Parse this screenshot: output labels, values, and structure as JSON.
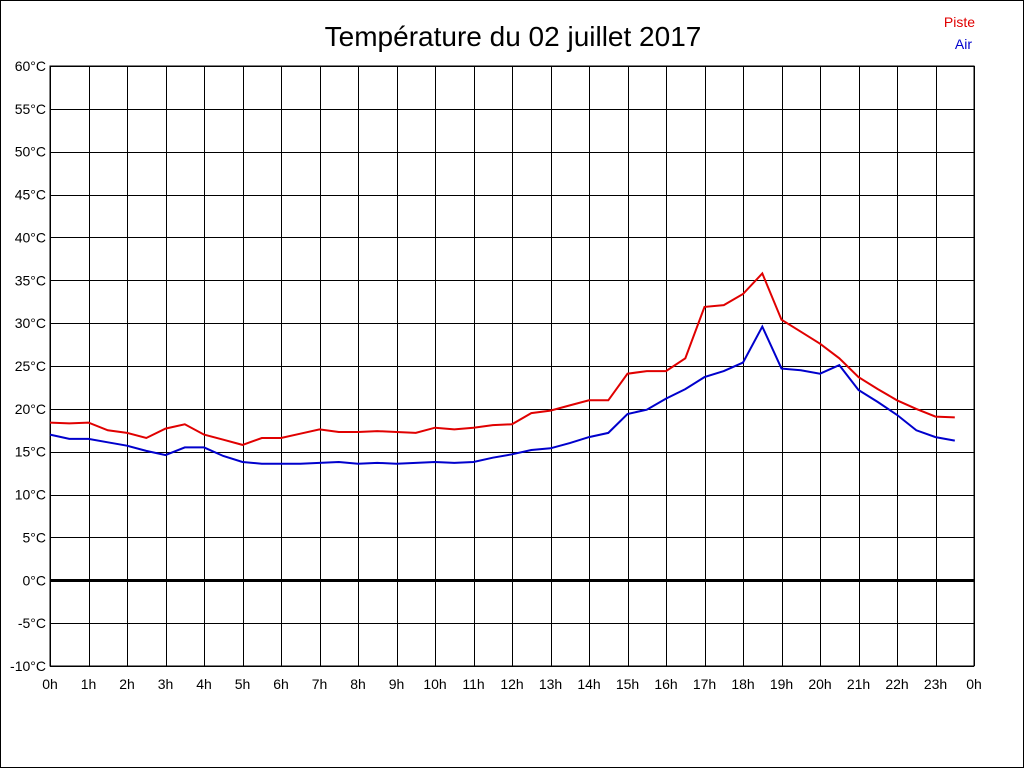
{
  "chart_data": {
    "type": "line",
    "title": "Température du 02 juillet 2017",
    "xlabel": "",
    "ylabel": "",
    "xlim": [
      0,
      24
    ],
    "ylim": [
      -10,
      60
    ],
    "grid": true,
    "legend_position": "top-right",
    "x_tick_labels": [
      "0h",
      "1h",
      "2h",
      "3h",
      "4h",
      "5h",
      "6h",
      "7h",
      "8h",
      "9h",
      "10h",
      "11h",
      "12h",
      "13h",
      "14h",
      "15h",
      "16h",
      "17h",
      "18h",
      "19h",
      "20h",
      "21h",
      "22h",
      "23h",
      "0h"
    ],
    "y_tick_labels": [
      "60°C",
      "55°C",
      "50°C",
      "45°C",
      "40°C",
      "35°C",
      "30°C",
      "25°C",
      "20°C",
      "15°C",
      "10°C",
      "5°C",
      "0°C",
      "-5°C",
      "-10°C"
    ],
    "y_tick_values": [
      60,
      55,
      50,
      45,
      40,
      35,
      30,
      25,
      20,
      15,
      10,
      5,
      0,
      -5,
      -10
    ],
    "x": [
      0,
      0.5,
      1,
      1.5,
      2,
      2.5,
      3,
      3.5,
      4,
      4.5,
      5,
      5.5,
      6,
      6.5,
      7,
      7.5,
      8,
      8.5,
      9,
      9.5,
      10,
      10.5,
      11,
      11.5,
      12,
      12.5,
      13,
      13.5,
      14,
      14.5,
      15,
      15.5,
      16,
      16.5,
      17,
      17.5,
      18,
      18.5,
      19,
      19.5,
      20,
      20.5,
      21,
      21.5,
      22,
      22.5,
      23,
      23.5
    ],
    "series": [
      {
        "name": "Piste",
        "color": "#e00000",
        "values": [
          18.4,
          18.3,
          18.4,
          17.5,
          17.2,
          16.6,
          17.7,
          18.2,
          17.0,
          16.4,
          15.8,
          16.6,
          16.6,
          17.1,
          17.6,
          17.3,
          17.3,
          17.4,
          17.3,
          17.2,
          17.8,
          17.6,
          17.8,
          18.1,
          18.2,
          19.5,
          19.8,
          20.4,
          21.0,
          21.0,
          24.1,
          24.4,
          24.4,
          25.9,
          31.9,
          32.1,
          33.4,
          35.8,
          30.4,
          29.0,
          27.6,
          25.9,
          23.7,
          22.3,
          21.0,
          20.0,
          19.1,
          19.0
        ]
      },
      {
        "name": "Air",
        "color": "#0000cc",
        "values": [
          17.0,
          16.5,
          16.5,
          16.1,
          15.7,
          15.1,
          14.6,
          15.5,
          15.5,
          14.5,
          13.8,
          13.6,
          13.6,
          13.6,
          13.7,
          13.8,
          13.6,
          13.7,
          13.6,
          13.7,
          13.8,
          13.7,
          13.8,
          14.3,
          14.7,
          15.2,
          15.4,
          16.0,
          16.7,
          17.2,
          19.4,
          19.9,
          21.2,
          22.3,
          23.7,
          24.4,
          25.4,
          29.6,
          24.7,
          24.5,
          24.1,
          25.1,
          22.2,
          20.8,
          19.3,
          17.5,
          16.7,
          16.3
        ]
      }
    ]
  }
}
